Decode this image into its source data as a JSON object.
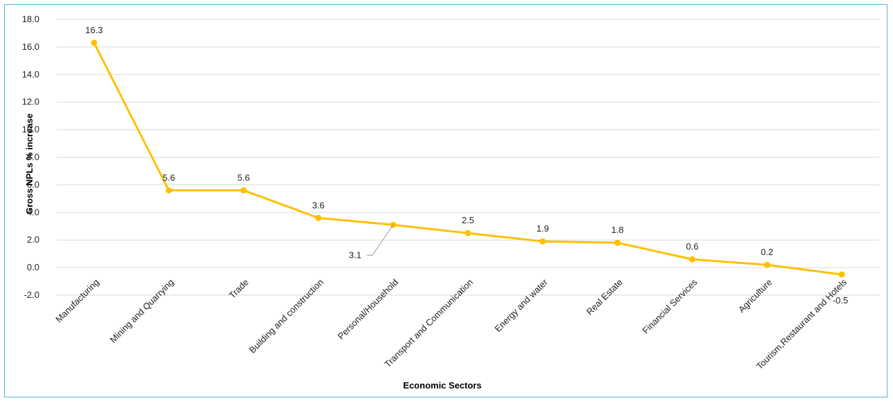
{
  "chart_data": {
    "type": "line",
    "categories": [
      "Manufacturing",
      "Mining and Quarrying",
      "Trade",
      "Building and construction",
      "Personal/Household",
      "Transport and Communication",
      "Energy and water",
      "Real Estate",
      "Financial Services",
      "Agriculture",
      "Tourism,Restaurant and Hotels"
    ],
    "values": [
      16.3,
      5.6,
      5.6,
      3.6,
      3.1,
      2.5,
      1.9,
      1.8,
      0.6,
      0.2,
      -0.5
    ],
    "data_labels": [
      "16.3",
      "5.6",
      "5.6",
      "3.6",
      "3.1",
      "2.5",
      "1.9",
      "1.8",
      "0.6",
      "0.2",
      "-0.5"
    ],
    "xlabel": "Economic Sectors",
    "ylabel": "Gross NPLs % increase",
    "ylim": [
      -2.0,
      18.0
    ],
    "yticks": [
      "18.0",
      "16.0",
      "14.0",
      "12.0",
      "10.0",
      "8.0",
      "6.0",
      "4.0",
      "2.0",
      "0.0",
      "-2.0"
    ],
    "grid": true,
    "legend": "none",
    "colors": {
      "line": "#FFC000",
      "grid": "#d9d9d9",
      "frame": "#4fb3d9"
    }
  }
}
